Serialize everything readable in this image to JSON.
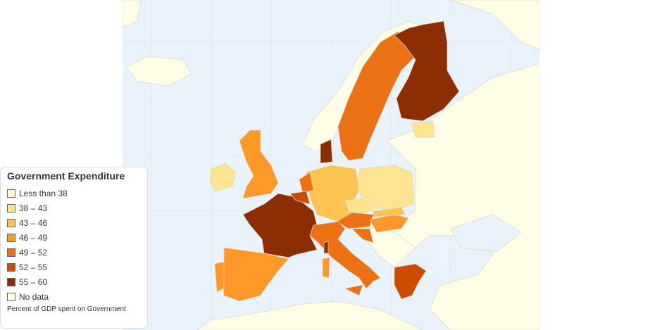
{
  "legend": {
    "title": "Government Expenditure",
    "items": [
      {
        "label": "Less than 38",
        "color": "#ffffcc"
      },
      {
        "label": "38 – 43",
        "color": "#fee391"
      },
      {
        "label": "43 – 46",
        "color": "#fec44f"
      },
      {
        "label": "46 – 49",
        "color": "#fe9929"
      },
      {
        "label": "49 – 52",
        "color": "#ec7014"
      },
      {
        "label": "52 – 55",
        "color": "#cc4c02"
      },
      {
        "label": "55 – 60",
        "color": "#8c2d04"
      },
      {
        "label": "No data",
        "color": "#fefee6"
      }
    ],
    "note": "Percent of GDP spent on Government"
  },
  "map": {
    "sea_color": "#eaf3fb",
    "land_color": "#fefee6",
    "regions": [
      {
        "id": "france",
        "bin": 6
      },
      {
        "id": "spain",
        "bin": 3
      },
      {
        "id": "portugal",
        "bin": 3
      },
      {
        "id": "uk",
        "bin": 3
      },
      {
        "id": "ireland",
        "bin": 1
      },
      {
        "id": "sweden",
        "bin": 4
      },
      {
        "id": "finland",
        "bin": 6
      },
      {
        "id": "denmark",
        "bin": 6
      },
      {
        "id": "estonia",
        "bin": 1
      },
      {
        "id": "germany",
        "bin": 2
      },
      {
        "id": "poland",
        "bin": 1
      },
      {
        "id": "netherlands",
        "bin": 4
      },
      {
        "id": "belgium",
        "bin": 5
      },
      {
        "id": "czechia",
        "bin": 1
      },
      {
        "id": "austria",
        "bin": 4
      },
      {
        "id": "hungary",
        "bin": 3
      },
      {
        "id": "slovakia",
        "bin": 2
      },
      {
        "id": "italy",
        "bin": 4
      },
      {
        "id": "sicily",
        "bin": 4
      },
      {
        "id": "sardinia",
        "bin": 3
      },
      {
        "id": "corsica",
        "bin": 6
      },
      {
        "id": "slovenia",
        "bin": 4
      },
      {
        "id": "greece",
        "bin": 5
      }
    ]
  }
}
